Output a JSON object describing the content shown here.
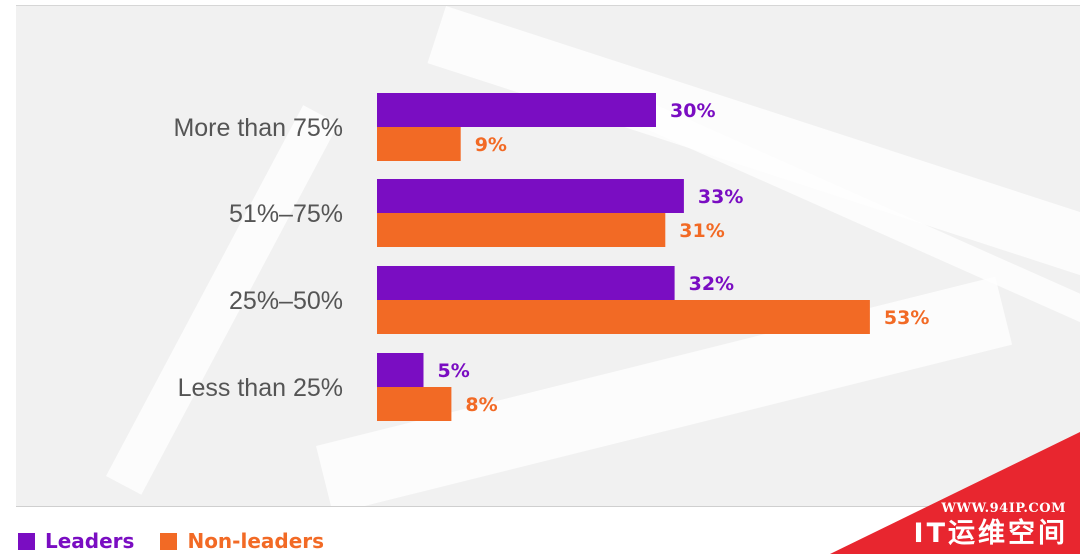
{
  "chart_data": {
    "type": "bar",
    "orientation": "horizontal",
    "categories": [
      "More than 75%",
      "51%–75%",
      "25%–50%",
      "Less than 25%"
    ],
    "series": [
      {
        "name": "Leaders",
        "color": "#7a0dc2",
        "values": [
          30,
          33,
          32,
          5
        ],
        "labels": [
          "30%",
          "33%",
          "32%",
          "5%"
        ]
      },
      {
        "name": "Non-leaders",
        "color": "#f26a25",
        "values": [
          9,
          31,
          53,
          8
        ],
        "labels": [
          "9%",
          "31%",
          "53%",
          "8%"
        ]
      }
    ],
    "xlim": [
      0,
      60
    ],
    "grid": false,
    "legend_position": "bottom-left"
  },
  "watermark": {
    "url": "WWW.94IP.COM",
    "name": "IT运维空间",
    "color": "#e8262f"
  }
}
